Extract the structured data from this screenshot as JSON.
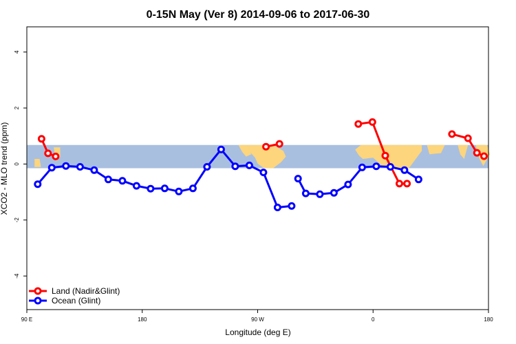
{
  "chart_data": {
    "type": "line",
    "title": "0-15N May (Ver 8)   2014-09-06 to 2017-06-30",
    "xlabel": "Longitude (deg E)",
    "ylabel": "XCO2 - MLO trend (ppm)",
    "xlim": [
      90,
      450
    ],
    "ylim": [
      -5.2,
      4.9
    ],
    "x_ticks": [
      {
        "value": 90,
        "label": "90 E"
      },
      {
        "value": 180,
        "label": "180"
      },
      {
        "value": 270,
        "label": "90 W"
      },
      {
        "value": 360,
        "label": "0"
      },
      {
        "value": 450,
        "label": "180"
      }
    ],
    "y_ticks": [
      {
        "value": -4,
        "label": "-4"
      },
      {
        "value": -2,
        "label": "-2"
      },
      {
        "value": 0,
        "label": "0"
      },
      {
        "value": 2,
        "label": "2"
      },
      {
        "value": 4,
        "label": "4"
      }
    ],
    "band": {
      "lat_range": [
        0,
        15
      ],
      "y_range": [
        -0.15,
        0.68
      ],
      "ocean_color": "#a9bfe0",
      "land_color": "#fcd57c"
    },
    "grid": false,
    "legend_position": "bottom-left",
    "series": [
      {
        "name": "Land (Nadir&Glint)",
        "color": "#ff0000",
        "segments": [
          [
            [
              101.5,
              0.9
            ],
            [
              106.5,
              0.38
            ],
            [
              112.5,
              0.27
            ]
          ],
          [
            [
              276.5,
              0.62
            ],
            [
              287,
              0.72
            ]
          ],
          [
            [
              348.5,
              1.43
            ],
            [
              359.5,
              1.5
            ],
            [
              369.5,
              0.3
            ],
            [
              380.5,
              -0.7
            ],
            [
              386.5,
              -0.7
            ]
          ],
          [
            [
              421.5,
              1.07
            ],
            [
              434,
              0.92
            ],
            [
              441,
              0.4
            ],
            [
              446.5,
              0.28
            ]
          ]
        ]
      },
      {
        "name": "Ocean (Glint)",
        "color": "#0000ff",
        "segments": [
          [
            [
              98.5,
              -0.72
            ],
            [
              109.5,
              -0.13
            ],
            [
              120.5,
              -0.07
            ],
            [
              131.5,
              -0.1
            ],
            [
              142.5,
              -0.22
            ],
            [
              153.5,
              -0.55
            ],
            [
              164.5,
              -0.6
            ],
            [
              175.5,
              -0.78
            ],
            [
              186.5,
              -0.88
            ],
            [
              197.5,
              -0.87
            ],
            [
              208.5,
              -0.98
            ],
            [
              219.5,
              -0.87
            ],
            [
              230.5,
              -0.1
            ],
            [
              241.5,
              0.52
            ],
            [
              252.5,
              -0.08
            ],
            [
              263.5,
              -0.05
            ],
            [
              274.5,
              -0.3
            ],
            [
              285.5,
              -1.55
            ],
            [
              296.5,
              -1.5
            ]
          ],
          [
            [
              301.5,
              -0.52
            ],
            [
              307.5,
              -1.05
            ],
            [
              318.5,
              -1.08
            ],
            [
              329.5,
              -1.03
            ],
            [
              340.5,
              -0.73
            ],
            [
              351.5,
              -0.12
            ],
            [
              362.5,
              -0.08
            ],
            [
              373.5,
              -0.1
            ],
            [
              384.5,
              -0.22
            ],
            [
              395.5,
              -0.55
            ]
          ]
        ]
      }
    ]
  }
}
